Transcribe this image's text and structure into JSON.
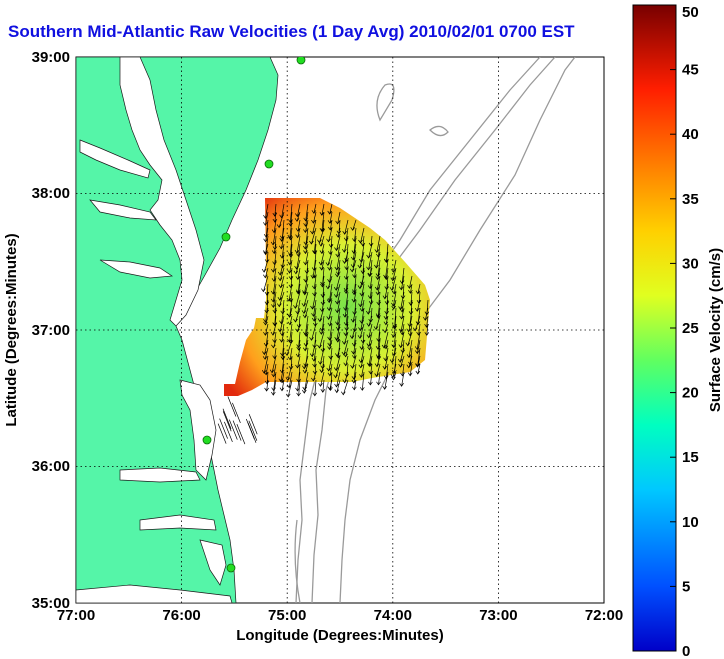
{
  "title": "Southern Mid-Atlantic Raw Velocities (1 Day Avg) 2010/02/01 0700 EST",
  "map": {
    "xlabel": "Longitude (Degrees:Minutes)",
    "ylabel": "Latitude (Degrees:Minutes)",
    "lon_ticks": [
      "77:00",
      "76:00",
      "75:00",
      "74:00",
      "73:00",
      "72:00"
    ],
    "lat_ticks": [
      "39:00",
      "38:00",
      "37:00",
      "36:00",
      "35:00"
    ],
    "lon_range": [
      -77,
      -72
    ],
    "lat_range": [
      35,
      39
    ],
    "grid": true,
    "land_color": "#55f5a8",
    "bathymetry_color": "#9a9a9a",
    "station_color": "#22dd22"
  },
  "colorbar": {
    "label": "Surface Velocity (cm/s)",
    "ticks": [
      "0",
      "5",
      "10",
      "15",
      "20",
      "25",
      "30",
      "35",
      "40",
      "45",
      "50"
    ],
    "range": [
      0,
      50
    ],
    "colormap": "jet"
  }
}
